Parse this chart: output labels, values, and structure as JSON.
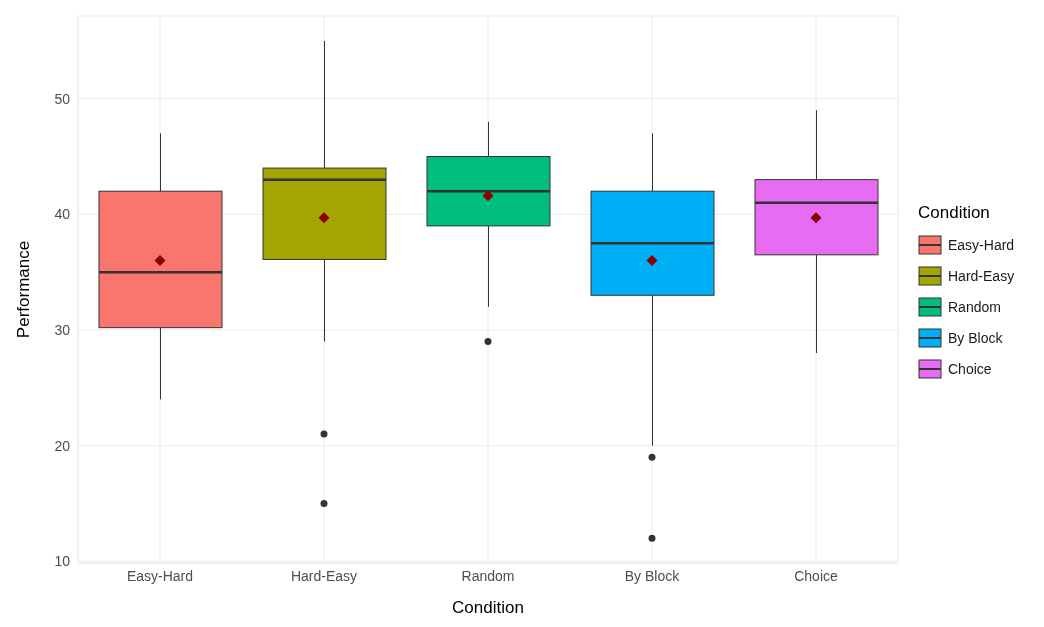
{
  "chart_data": {
    "type": "box",
    "xlabel": "Condition",
    "ylabel": "Performance",
    "legend_title": "Condition",
    "categories": [
      "Easy-Hard",
      "Hard-Easy",
      "Random",
      "By Block",
      "Choice"
    ],
    "series": [
      {
        "name": "Easy-Hard",
        "color": "#f8766d",
        "boxes": [
          {
            "low": 24,
            "q1": 30.2,
            "median": 35,
            "q3": 42,
            "high": 47,
            "mean": 36
          },
          null,
          null,
          null,
          null
        ]
      },
      {
        "name": "Hard-Easy",
        "color": "#a3a500",
        "boxes": [
          null,
          {
            "low": 29,
            "q1": 36.1,
            "median": 43,
            "q3": 44,
            "high": 55,
            "mean": 39.7,
            "outliers": [
              21,
              15
            ]
          },
          null,
          null,
          null
        ]
      },
      {
        "name": "Random",
        "color": "#00bf7d",
        "boxes": [
          null,
          null,
          {
            "low": 32,
            "q1": 39,
            "median": 42,
            "q3": 45,
            "high": 48,
            "mean": 41.6,
            "outliers": [
              29
            ]
          },
          null,
          null
        ]
      },
      {
        "name": "By Block",
        "color": "#00b0f6",
        "boxes": [
          null,
          null,
          null,
          {
            "low": 20,
            "q1": 33,
            "median": 37.5,
            "q3": 42,
            "high": 47,
            "mean": 36,
            "outliers": [
              19,
              12
            ]
          },
          null
        ]
      },
      {
        "name": "Choice",
        "color": "#e76bf3",
        "boxes": [
          null,
          null,
          null,
          null,
          {
            "low": 28,
            "q1": 36.5,
            "median": 41,
            "q3": 43,
            "high": 49,
            "mean": 39.7
          }
        ]
      }
    ],
    "ylim": [
      9.85,
      57.15
    ],
    "yticks": [
      10,
      20,
      30,
      40,
      50
    ],
    "grid": true,
    "legend": "right",
    "marker": "circle"
  }
}
